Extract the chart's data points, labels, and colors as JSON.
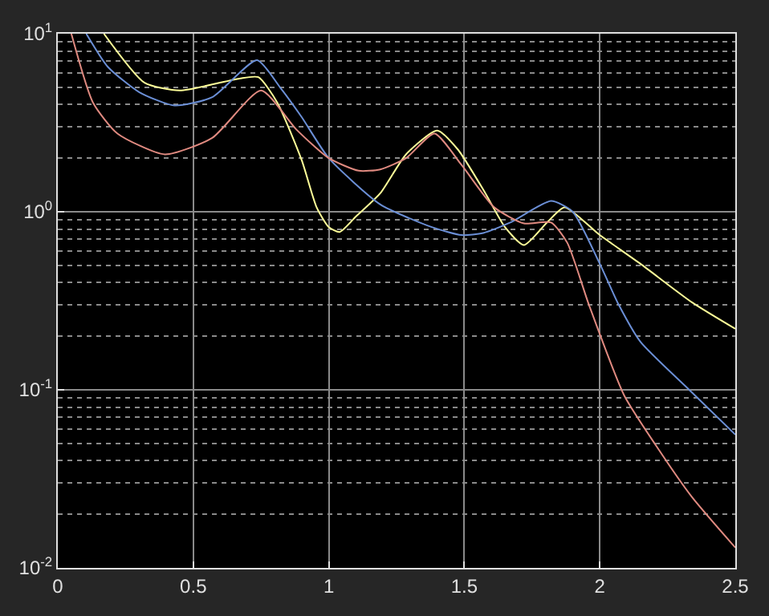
{
  "chart_data": {
    "type": "line",
    "log": "y",
    "grid": true,
    "marker": "none",
    "line_style": "solid",
    "xlim": [
      0,
      2.5
    ],
    "xticks": [
      0,
      0.5,
      1,
      1.5,
      2,
      2.5
    ],
    "ylim": [
      0.01,
      10
    ],
    "yticks": [
      {
        "value": 0.01,
        "label": "10$^{-2}$"
      },
      {
        "value": 0.1,
        "label": "10$^{-1}$"
      },
      {
        "value": 1,
        "label": "10$^{0}$"
      },
      {
        "value": 10,
        "label": "10$^{1}$"
      }
    ],
    "series": [
      {
        "color": "#ffff99",
        "x": [
          0.17,
          0.32,
          0.45,
          0.67,
          0.74,
          0.81,
          0.9,
          0.955,
          1.0,
          1.04,
          1.1,
          1.19,
          1.285,
          1.4,
          1.476,
          1.574,
          1.65,
          1.72,
          1.805,
          1.87,
          2.0,
          2.15,
          2.34,
          2.5
        ],
        "values": [
          10,
          5.3,
          4.8,
          5.6,
          5.7,
          4.1,
          1.95,
          1.06,
          0.82,
          0.77,
          0.94,
          1.27,
          2.1,
          2.86,
          2.24,
          1.3,
          0.82,
          0.65,
          0.87,
          1.06,
          0.74,
          0.51,
          0.31,
          0.22
        ]
      },
      {
        "color": "#6b8fd6",
        "x": [
          0.105,
          0.185,
          0.3,
          0.43,
          0.57,
          0.735,
          0.82,
          0.9,
          1.0,
          1.19,
          1.38,
          1.49,
          1.57,
          1.67,
          1.82,
          1.9,
          2.0,
          2.07,
          2.15,
          2.33,
          2.5
        ],
        "values": [
          10,
          6.5,
          4.7,
          3.95,
          4.4,
          7.1,
          5.0,
          3.4,
          2.0,
          1.1,
          0.82,
          0.74,
          0.76,
          0.87,
          1.15,
          1.0,
          0.51,
          0.3,
          0.186,
          0.1,
          0.056
        ]
      },
      {
        "color": "#e08a80",
        "x": [
          0.05,
          0.13,
          0.22,
          0.395,
          0.57,
          0.75,
          0.88,
          1.0,
          1.11,
          1.19,
          1.285,
          1.39,
          1.49,
          1.61,
          1.72,
          1.82,
          1.88,
          1.96,
          2.09,
          2.21,
          2.34,
          2.5
        ],
        "values": [
          10,
          4.1,
          2.75,
          2.1,
          2.6,
          4.8,
          2.9,
          2.0,
          1.7,
          1.73,
          2.0,
          2.75,
          1.83,
          1.06,
          0.86,
          0.87,
          0.67,
          0.3,
          0.093,
          0.048,
          0.025,
          0.013
        ]
      }
    ]
  }
}
